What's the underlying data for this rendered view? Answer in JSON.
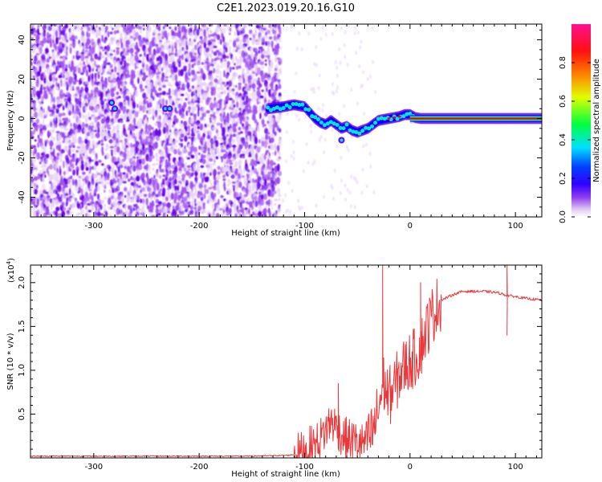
{
  "figure": {
    "title": "C2E1.2023.019.20.16.G10"
  },
  "chart_data": [
    {
      "type": "heatmap",
      "xlabel": "Height of straight line (km)",
      "ylabel": "Frequency (Hz)",
      "xlim": [
        -360,
        125
      ],
      "ylim": [
        -50,
        48
      ],
      "x_ticks": [
        -300,
        -200,
        -100,
        0,
        100
      ],
      "y_ticks": [
        -40,
        -20,
        0,
        20,
        40
      ],
      "colorbar": {
        "label": "Normalized spectral amplitude",
        "range": [
          0,
          1
        ],
        "ticks": [
          "0.0",
          "0.2",
          "0.4",
          "0.6",
          "0.8"
        ],
        "tick_values": [
          0,
          0.2,
          0.4,
          0.6,
          0.8
        ]
      },
      "noise_region_x": [
        -360,
        -123
      ],
      "ridge": {
        "x": [
          -135,
          -120,
          -110,
          -100,
          -95,
          -90,
          -85,
          -80,
          -75,
          -70,
          -65,
          -60,
          -55,
          -50,
          -45,
          -40,
          -35,
          -30,
          -25,
          -20,
          -15,
          -10,
          -5,
          0,
          5,
          10,
          20,
          40,
          60,
          80,
          100,
          125
        ],
        "y": [
          5,
          6,
          7,
          6,
          3,
          0,
          -2,
          -3,
          -1,
          -3,
          -5,
          -4,
          -6,
          -7,
          -6,
          -5,
          -3,
          -1,
          -0.5,
          0,
          0.5,
          1,
          2,
          2,
          0.5,
          0,
          0,
          0,
          0,
          0,
          0,
          0
        ]
      },
      "colors": [
        "#ffffff",
        "#e6d0f5",
        "#a04cf0",
        "#6a00e8",
        "#0000ff",
        "#00e5ff",
        "#00ff30",
        "#ffff00",
        "#ff8000",
        "#ff0000",
        "#ff1090"
      ]
    },
    {
      "type": "line",
      "xlabel": "Height of straight line (km)",
      "ylabel": "SNR (10 * v/v)",
      "y_multiplier_label": "(x10",
      "y_multiplier_exp": "4",
      "y_multiplier_close": ")",
      "xlim": [
        -360,
        125
      ],
      "ylim": [
        0,
        2.2
      ],
      "x_ticks": [
        -300,
        -200,
        -100,
        0,
        100
      ],
      "y_ticks": [
        0.5,
        1.0,
        1.5,
        2.0
      ],
      "y_tick_labels": [
        "0.5",
        "1.0",
        "1.5",
        "2.0"
      ],
      "line_color": "#e8383a",
      "series": {
        "x": [
          -360,
          -250,
          -150,
          -115,
          -105,
          -100,
          -95,
          -90,
          -85,
          -80,
          -75,
          -70,
          -65,
          -60,
          -55,
          -50,
          -45,
          -40,
          -35,
          -30,
          -27,
          -25,
          -20,
          -15,
          -10,
          -5,
          0,
          5,
          10,
          15,
          20,
          25,
          30,
          40,
          50,
          60,
          70,
          80,
          85,
          90,
          95,
          100,
          110,
          125
        ],
        "y": [
          0.02,
          0.02,
          0.02,
          0.03,
          0.05,
          0.08,
          0.12,
          0.15,
          0.22,
          0.32,
          0.42,
          0.36,
          0.26,
          0.22,
          0.2,
          0.18,
          0.16,
          0.2,
          0.3,
          0.55,
          0.75,
          0.85,
          0.7,
          0.8,
          0.95,
          1.05,
          1.1,
          1.15,
          1.25,
          1.45,
          1.6,
          1.72,
          1.8,
          1.86,
          1.9,
          1.9,
          1.9,
          1.89,
          1.88,
          1.86,
          1.85,
          1.84,
          1.82,
          1.8
        ]
      },
      "spikes": [
        {
          "x": -26,
          "y": 2.2
        },
        {
          "x": -68,
          "y": 0.85
        },
        {
          "x": 10,
          "y": 2.0
        },
        {
          "x": 92,
          "y": 2.2
        },
        {
          "x": 92,
          "y": 1.4
        }
      ]
    }
  ]
}
